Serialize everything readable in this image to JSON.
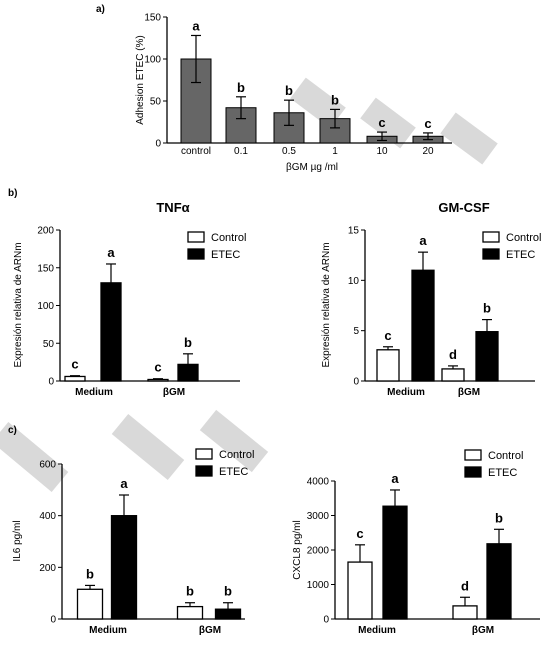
{
  "panels": {
    "a": "a)",
    "b": "b)",
    "c": "c)"
  },
  "chart_data": [
    {
      "id": "adhesion",
      "type": "bar",
      "panel": "a)",
      "title": "",
      "ylabel": "Adhesion ETEC (%)",
      "xlabel": "βGM µg /ml",
      "ylim": [
        0,
        150
      ],
      "yticks": [
        0,
        50,
        100,
        150
      ],
      "categories": [
        "control",
        "0.1",
        "0.5",
        "1",
        "10",
        "20"
      ],
      "series": [
        {
          "values": [
            100,
            42,
            36,
            29,
            8,
            8
          ],
          "errors": [
            28,
            13,
            15,
            11,
            5,
            4
          ],
          "letters": [
            "a",
            "b",
            "b",
            "b",
            "c",
            "c"
          ],
          "color": "#666666"
        }
      ]
    },
    {
      "id": "tnfa",
      "type": "bar",
      "panel": "b)",
      "title": "TNFα",
      "ylabel": "Expresión relativa de ARNm",
      "ylim": [
        0,
        200
      ],
      "yticks": [
        0,
        50,
        100,
        150,
        200
      ],
      "categories": [
        "Medium",
        "βGM"
      ],
      "legend": [
        "Control",
        "ETEC"
      ],
      "series": [
        {
          "name": "Control",
          "color": "#ffffff",
          "values": [
            6,
            2
          ],
          "errors": [
            1,
            1
          ],
          "letters": [
            "c",
            "c"
          ]
        },
        {
          "name": "ETEC",
          "color": "#000000",
          "values": [
            130,
            22
          ],
          "errors": [
            25,
            14
          ],
          "letters": [
            "a",
            "b"
          ]
        }
      ]
    },
    {
      "id": "gmcsf",
      "type": "bar",
      "panel": "b)",
      "title": "GM-CSF",
      "ylabel": "Expresión relativa de ARNm",
      "ylim": [
        0,
        15
      ],
      "yticks": [
        0,
        5,
        10,
        15
      ],
      "categories": [
        "Medium",
        "βGM"
      ],
      "legend": [
        "Control",
        "ETEC"
      ],
      "series": [
        {
          "name": "Control",
          "color": "#ffffff",
          "values": [
            3.1,
            1.2
          ],
          "errors": [
            0.3,
            0.3
          ],
          "letters": [
            "c",
            "d"
          ]
        },
        {
          "name": "ETEC",
          "color": "#000000",
          "values": [
            11,
            4.9
          ],
          "errors": [
            1.8,
            1.2
          ],
          "letters": [
            "a",
            "b"
          ]
        }
      ]
    },
    {
      "id": "il6",
      "type": "bar",
      "panel": "c)",
      "title": "",
      "ylabel": "IL6 pg/ml",
      "ylim": [
        0,
        600
      ],
      "yticks": [
        0,
        200,
        400,
        600
      ],
      "categories": [
        "Medium",
        "βGM"
      ],
      "legend": [
        "Control",
        "ETEC"
      ],
      "series": [
        {
          "name": "Control",
          "color": "#ffffff",
          "values": [
            115,
            48
          ],
          "errors": [
            15,
            15
          ],
          "letters": [
            "b",
            "b"
          ]
        },
        {
          "name": "ETEC",
          "color": "#000000",
          "values": [
            400,
            38
          ],
          "errors": [
            80,
            25
          ],
          "letters": [
            "a",
            "b"
          ]
        }
      ]
    },
    {
      "id": "cxcl8",
      "type": "bar",
      "panel": "c)",
      "title": "",
      "ylabel": "CXCL8 pg/ml",
      "ylim": [
        0,
        4000
      ],
      "yticks": [
        0,
        1000,
        2000,
        3000,
        4000
      ],
      "categories": [
        "Medium",
        "βGM"
      ],
      "legend": [
        "Control",
        "ETEC"
      ],
      "series": [
        {
          "name": "Control",
          "color": "#ffffff",
          "values": [
            1650,
            380
          ],
          "errors": [
            500,
            250
          ],
          "letters": [
            "c",
            "d"
          ]
        },
        {
          "name": "ETEC",
          "color": "#000000",
          "values": [
            3270,
            2180
          ],
          "errors": [
            470,
            420
          ],
          "letters": [
            "a",
            "b"
          ]
        }
      ]
    }
  ]
}
